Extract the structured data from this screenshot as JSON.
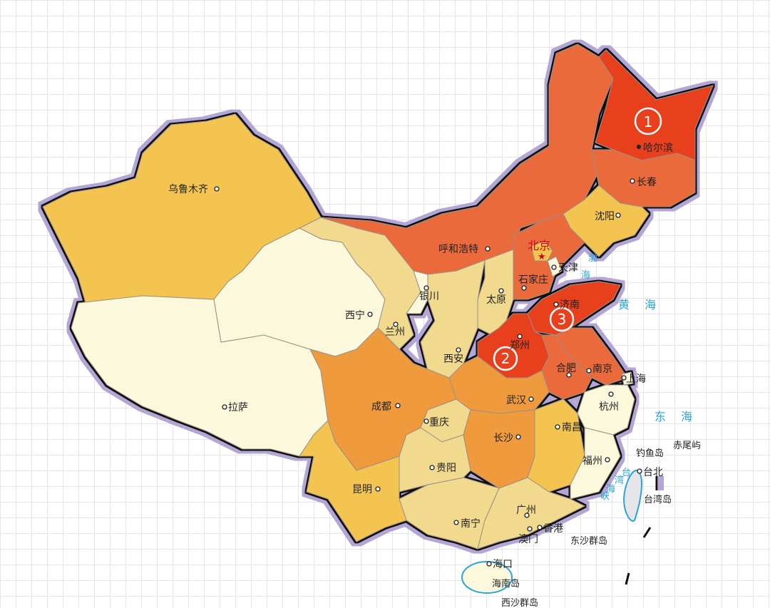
{
  "map": {
    "legend_colors": {
      "rank_top": "#e8401f",
      "high": "#ea6a3a",
      "mid_high": "#ef9a3d",
      "mid": "#f3c44f",
      "low_mid": "#f1d98e",
      "low": "#fcf8dc",
      "border_purple": "#b3a6d4",
      "sea_blue": "#2aa4d8"
    },
    "capital": "北京",
    "cities": {
      "urumqi": "乌鲁木齐",
      "lhasa": "拉萨",
      "xining": "西宁",
      "lanzhou": "兰州",
      "yinchuan": "银川",
      "hohhot": "呼和浩特",
      "tianjin": "天津",
      "shijiazhuang": "石家庄",
      "taiyuan": "太原",
      "jinan": "济南",
      "zhengzhou": "郑州",
      "xian": "西安",
      "chengdu": "成都",
      "chongqing": "重庆",
      "wuhan": "武汉",
      "hefei": "合肥",
      "nanjing": "南京",
      "shanghai": "上海",
      "hangzhou": "杭州",
      "changsha": "长沙",
      "nanchang": "南昌",
      "guiyang": "贵阳",
      "kunming": "昆明",
      "nanning": "南宁",
      "guangzhou": "广州",
      "hongkong": "香港",
      "macau": "澳门",
      "fuzhou": "福州",
      "taipei": "台北",
      "haikou": "海口",
      "harbin": "哈尔滨",
      "changchun": "长春",
      "shenyang": "沈阳"
    },
    "islands": {
      "taiwan": "台湾岛",
      "diaoyu": "钓鱼岛",
      "chiwei": "赤尾屿",
      "dongsha": "东沙群岛",
      "hainan": "海南岛",
      "xisha": "西沙群岛"
    },
    "seas": {
      "bohai_1": "渤",
      "bohai_2": "海",
      "yellow": "黄 海",
      "east": "东 海",
      "strait_1": "台",
      "strait_2": "湾",
      "strait_3": "海",
      "strait_4": "峡"
    },
    "ranks": [
      "1",
      "2",
      "3"
    ]
  }
}
